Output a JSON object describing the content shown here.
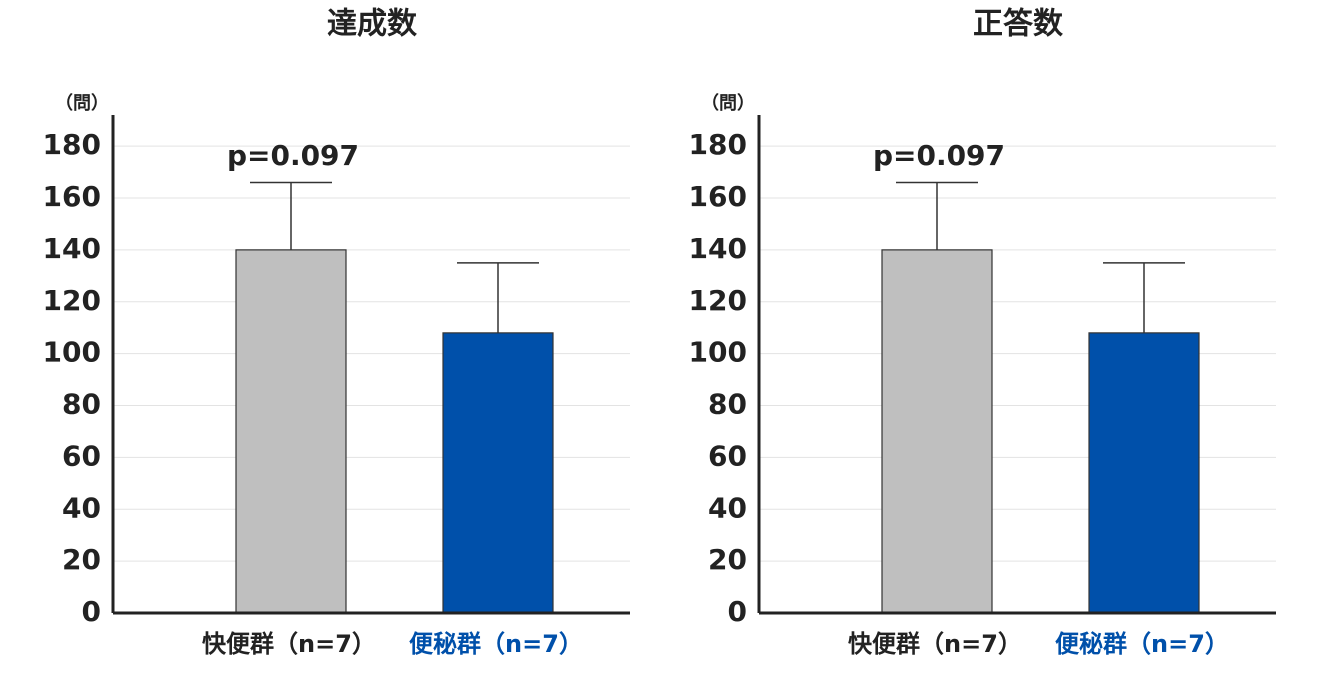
{
  "chart_data": [
    {
      "type": "bar",
      "title": "達成数",
      "y_unit_label": "（問）",
      "categories": [
        "快便群（n=7）",
        "便秘群（n=7）"
      ],
      "values": [
        140,
        108
      ],
      "errors": [
        26,
        27
      ],
      "colors": [
        "#bfbfbf",
        "#0050aa"
      ],
      "category_label_colors": [
        "#222222",
        "#0050aa"
      ],
      "annotation": "p=0.097",
      "ylim": [
        0,
        192
      ],
      "yticks": [
        0,
        20,
        40,
        60,
        80,
        100,
        120,
        140,
        160,
        180
      ],
      "grid": true
    },
    {
      "type": "bar",
      "title": "正答数",
      "y_unit_label": "（問）",
      "categories": [
        "快便群（n=7）",
        "便秘群（n=7）"
      ],
      "values": [
        140,
        108
      ],
      "errors": [
        26,
        27
      ],
      "colors": [
        "#bfbfbf",
        "#0050aa"
      ],
      "category_label_colors": [
        "#222222",
        "#0050aa"
      ],
      "annotation": "p=0.097",
      "ylim": [
        0,
        192
      ],
      "yticks": [
        0,
        20,
        40,
        60,
        80,
        100,
        120,
        140,
        160,
        180
      ],
      "grid": true
    }
  ]
}
